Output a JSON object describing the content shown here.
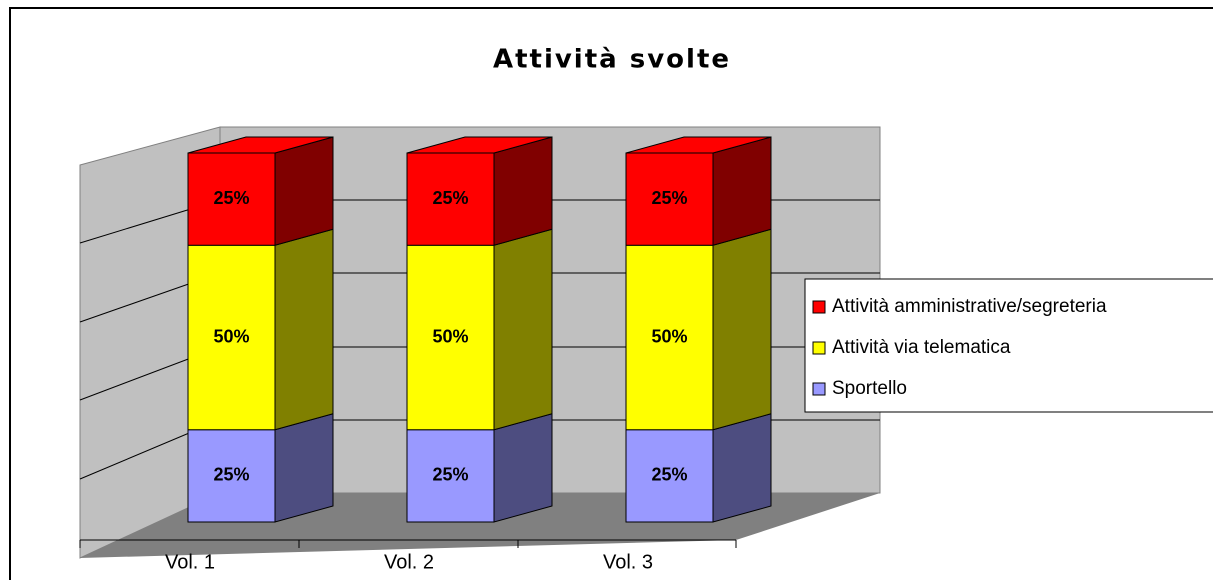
{
  "chart_data": {
    "type": "bar3d_stacked",
    "title": "Attività svolte",
    "categories": [
      "Vol. 1",
      "Vol. 2",
      "Vol. 3"
    ],
    "series": [
      {
        "name": "Sportello",
        "color": "#9999ff",
        "values": [
          25,
          25,
          25
        ],
        "value_labels": [
          "25%",
          "25%",
          "25%"
        ]
      },
      {
        "name": "Attività via telematica",
        "color": "#ffff00",
        "values": [
          50,
          50,
          50
        ],
        "value_labels": [
          "50%",
          "50%",
          "50%"
        ]
      },
      {
        "name": "Attività amministrative/segreteria",
        "color": "#ff0000",
        "values": [
          25,
          25,
          25
        ],
        "value_labels": [
          "25%",
          "25%",
          "25%"
        ]
      }
    ],
    "legend": "right"
  }
}
